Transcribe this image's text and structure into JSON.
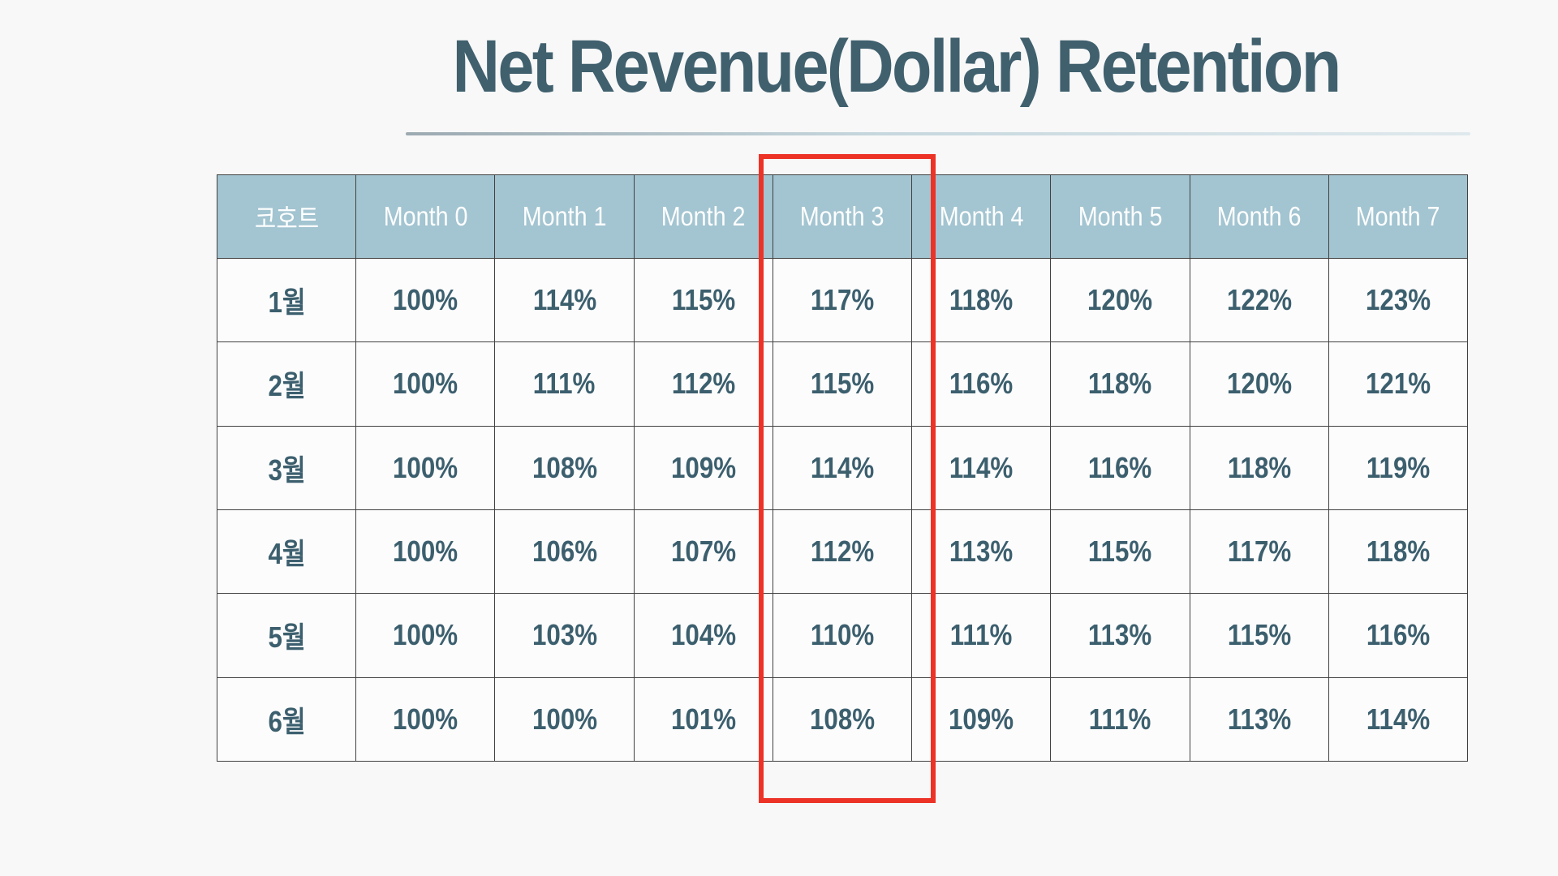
{
  "page": {
    "background_color": "#f8f8f8"
  },
  "title": {
    "text": "Net Revenue(Dollar) Retention",
    "color": "#40606e"
  },
  "table": {
    "header": [
      "코호트",
      "Month 0",
      "Month 1",
      "Month 2",
      "Month 3",
      "Month 4",
      "Month 5",
      "Month 6",
      "Month 7"
    ],
    "rows": [
      {
        "label": "1월",
        "values": [
          "100%",
          "114%",
          "115%",
          "117%",
          "118%",
          "120%",
          "122%",
          "123%"
        ]
      },
      {
        "label": "2월",
        "values": [
          "100%",
          "111%",
          "112%",
          "115%",
          "116%",
          "118%",
          "120%",
          "121%"
        ]
      },
      {
        "label": "3월",
        "values": [
          "100%",
          "108%",
          "109%",
          "114%",
          "114%",
          "116%",
          "118%",
          "119%"
        ]
      },
      {
        "label": "4월",
        "values": [
          "100%",
          "106%",
          "107%",
          "112%",
          "113%",
          "115%",
          "117%",
          "118%"
        ]
      },
      {
        "label": "5월",
        "values": [
          "100%",
          "103%",
          "104%",
          "110%",
          "111%",
          "113%",
          "115%",
          "116%"
        ]
      },
      {
        "label": "6월",
        "values": [
          "100%",
          "100%",
          "101%",
          "108%",
          "109%",
          "111%",
          "113%",
          "114%"
        ]
      }
    ],
    "colors": {
      "header_background": "#a3c4d1",
      "header_text": "#fdfefe",
      "cell_background": "#fcfcfc",
      "cell_text": "#3c5f6e",
      "border": "#414141"
    }
  },
  "highlight": {
    "column": "Month 3",
    "color": "#ec3326"
  },
  "chart_data": {
    "type": "table",
    "title": "Net Revenue(Dollar) Retention",
    "columns": [
      "코호트",
      "Month 0",
      "Month 1",
      "Month 2",
      "Month 3",
      "Month 4",
      "Month 5",
      "Month 6",
      "Month 7"
    ],
    "rows": [
      [
        "1월",
        "100%",
        "114%",
        "115%",
        "117%",
        "118%",
        "120%",
        "122%",
        "123%"
      ],
      [
        "2월",
        "100%",
        "111%",
        "112%",
        "115%",
        "116%",
        "118%",
        "120%",
        "121%"
      ],
      [
        "3월",
        "100%",
        "108%",
        "109%",
        "114%",
        "114%",
        "116%",
        "118%",
        "119%"
      ],
      [
        "4월",
        "100%",
        "106%",
        "107%",
        "112%",
        "113%",
        "115%",
        "117%",
        "118%"
      ],
      [
        "5월",
        "100%",
        "103%",
        "104%",
        "110%",
        "111%",
        "113%",
        "115%",
        "116%"
      ],
      [
        "6월",
        "100%",
        "100%",
        "101%",
        "108%",
        "109%",
        "111%",
        "113%",
        "114%"
      ]
    ],
    "highlighted_column": "Month 3",
    "legend_position": "none",
    "grid": true
  }
}
